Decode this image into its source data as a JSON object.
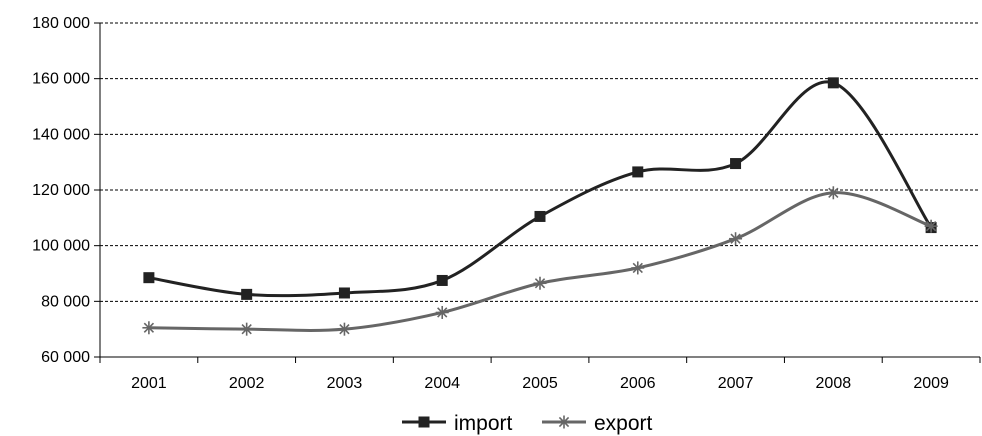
{
  "chart_data": {
    "type": "line",
    "title": "",
    "xlabel": "",
    "ylabel": "",
    "categories": [
      "2001",
      "2002",
      "2003",
      "2004",
      "2005",
      "2006",
      "2007",
      "2008",
      "2009"
    ],
    "ylim": [
      60000,
      180000
    ],
    "yticks": [
      60000,
      80000,
      100000,
      120000,
      140000,
      160000,
      180000
    ],
    "ytick_labels": [
      "60 000",
      "80 000",
      "100 000",
      "120 000",
      "140 000",
      "160 000",
      "180 000"
    ],
    "grid": true,
    "smooth": true,
    "legend_position": "bottom",
    "series": [
      {
        "name": "import",
        "marker": "square",
        "color": "#222222",
        "values": [
          88500,
          82500,
          83000,
          87500,
          110500,
          126500,
          129500,
          158500,
          106500
        ]
      },
      {
        "name": "export",
        "marker": "asterisk",
        "color": "#666666",
        "values": [
          70500,
          70000,
          70000,
          76000,
          86500,
          92000,
          102500,
          119000,
          107000
        ]
      }
    ]
  }
}
